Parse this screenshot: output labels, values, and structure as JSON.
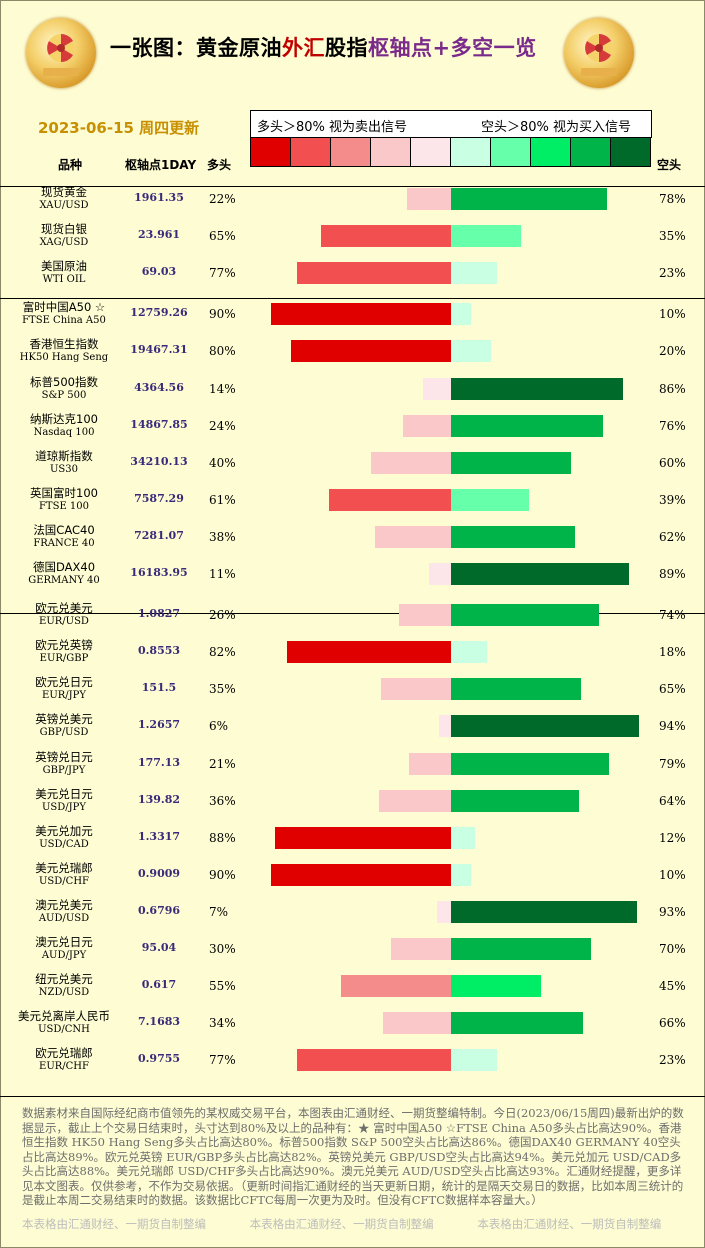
{
  "title": {
    "part1": "一张图：黄金原油",
    "part2": "外汇",
    "part3": "股指",
    "part4": "枢轴点+多空一览"
  },
  "date": "2023-06-15  周四更新",
  "legend": {
    "left": "多头＞80%  视为卖出信号",
    "right": "空头＞80%  视为买入信号"
  },
  "legend_colors": [
    "#e00000",
    "#f25050",
    "#f58c8c",
    "#fac8c8",
    "#fde6ea",
    "#c9ffe2",
    "#66ffaa",
    "#00ee66",
    "#00b44a",
    "#006a2a"
  ],
  "headers": {
    "name": "品种",
    "pivot": "枢轴点1DAY",
    "long": "多头",
    "short": "空头"
  },
  "chart_data": {
    "type": "bar",
    "series": [
      {
        "name": "多头"
      },
      {
        "name": "空头"
      }
    ],
    "rows": [
      {
        "name": "现货黄金",
        "code": "XAU/USD",
        "pivot": "1961.35",
        "long": 22,
        "short": 78,
        "long_label": "22%",
        "short_label": "78%"
      },
      {
        "name": "现货白银",
        "code": "XAG/USD",
        "pivot": "23.961",
        "long": 65,
        "short": 35,
        "long_label": "65%",
        "short_label": "35%"
      },
      {
        "name": "美国原油",
        "code": "WTI OIL",
        "pivot": "69.03",
        "long": 77,
        "short": 23,
        "long_label": "77%",
        "short_label": "23%"
      },
      {
        "name": "富时中国A50 ☆",
        "code": "FTSE China A50",
        "pivot": "12759.26",
        "long": 90,
        "short": 10,
        "long_label": "90%",
        "short_label": "10%"
      },
      {
        "name": "香港恒生指数",
        "code": "HK50 Hang Seng",
        "pivot": "19467.31",
        "long": 80,
        "short": 20,
        "long_label": "80%",
        "short_label": "20%"
      },
      {
        "name": "标普500指数",
        "code": "S&P 500",
        "pivot": "4364.56",
        "long": 14,
        "short": 86,
        "long_label": "14%",
        "short_label": "86%"
      },
      {
        "name": "纳斯达克100",
        "code": "Nasdaq 100",
        "pivot": "14867.85",
        "long": 24,
        "short": 76,
        "long_label": "24%",
        "short_label": "76%"
      },
      {
        "name": "道琼斯指数",
        "code": "US30",
        "pivot": "34210.13",
        "long": 40,
        "short": 60,
        "long_label": "40%",
        "short_label": "60%"
      },
      {
        "name": "英国富时100",
        "code": "FTSE 100",
        "pivot": "7587.29",
        "long": 61,
        "short": 39,
        "long_label": "61%",
        "short_label": "39%"
      },
      {
        "name": "法国CAC40",
        "code": "FRANCE 40",
        "pivot": "7281.07",
        "long": 38,
        "short": 62,
        "long_label": "38%",
        "short_label": "62%"
      },
      {
        "name": "德国DAX40",
        "code": "GERMANY 40",
        "pivot": "16183.95",
        "long": 11,
        "short": 89,
        "long_label": "11%",
        "short_label": "89%"
      },
      {
        "name": "欧元兑美元",
        "code": "EUR/USD",
        "pivot": "1.0827",
        "long": 26,
        "short": 74,
        "long_label": "26%",
        "short_label": "74%"
      },
      {
        "name": "欧元兑英镑",
        "code": "EUR/GBP",
        "pivot": "0.8553",
        "long": 82,
        "short": 18,
        "long_label": "82%",
        "short_label": "18%"
      },
      {
        "name": "欧元兑日元",
        "code": "EUR/JPY",
        "pivot": "151.5",
        "long": 35,
        "short": 65,
        "long_label": "35%",
        "short_label": "65%"
      },
      {
        "name": "英镑兑美元",
        "code": "GBP/USD",
        "pivot": "1.2657",
        "long": 6,
        "short": 94,
        "long_label": "6%",
        "short_label": "94%"
      },
      {
        "name": "英镑兑日元",
        "code": "GBP/JPY",
        "pivot": "177.13",
        "long": 21,
        "short": 79,
        "long_label": "21%",
        "short_label": "79%"
      },
      {
        "name": "美元兑日元",
        "code": "USD/JPY",
        "pivot": "139.82",
        "long": 36,
        "short": 64,
        "long_label": "36%",
        "short_label": "64%"
      },
      {
        "name": "美元兑加元",
        "code": "USD/CAD",
        "pivot": "1.3317",
        "long": 88,
        "short": 12,
        "long_label": "88%",
        "short_label": "12%"
      },
      {
        "name": "美元兑瑞郎",
        "code": "USD/CHF",
        "pivot": "0.9009",
        "long": 90,
        "short": 10,
        "long_label": "90%",
        "short_label": "10%"
      },
      {
        "name": "澳元兑美元",
        "code": "AUD/USD",
        "pivot": "0.6796",
        "long": 7,
        "short": 93,
        "long_label": "7%",
        "short_label": "93%"
      },
      {
        "name": "澳元兑日元",
        "code": "AUD/JPY",
        "pivot": "95.04",
        "long": 30,
        "short": 70,
        "long_label": "30%",
        "short_label": "70%"
      },
      {
        "name": "纽元兑美元",
        "code": "NZD/USD",
        "pivot": "0.617",
        "long": 55,
        "short": 45,
        "long_label": "55%",
        "short_label": "45%"
      },
      {
        "name": "美元兑离岸人民币",
        "code": "USD/CNH",
        "pivot": "7.1683",
        "long": 34,
        "short": 66,
        "long_label": "34%",
        "short_label": "66%"
      },
      {
        "name": "欧元兑瑞郎",
        "code": "EUR/CHF",
        "pivot": "0.9755",
        "long": 77,
        "short": 23,
        "long_label": "77%",
        "short_label": "23%"
      }
    ]
  },
  "footer": "数据素材来自国际经纪商市值领先的某权威交易平台，本图表由汇通财经、一期货整编特制。今日(2023/06/15周四)最新出炉的数据显示，截止上个交易日结束时，头寸达到80%及以上的品种有：★ 富时中国A50 ☆FTSE China A50多头占比高达90%。香港恒生指数 HK50 Hang Seng多头占比高达80%。标普500指数 S&P 500空头占比高达86%。德国DAX40  GERMANY 40空头占比高达89%。欧元兑英镑 EUR/GBP多头占比高达82%。英镑兑美元 GBP/USD空头占比高达94%。美元兑加元 USD/CAD多头占比高达88%。美元兑瑞郎 USD/CHF多头占比高达90%。澳元兑美元 AUD/USD空头占比高达93%。汇通财经提醒，更多详见本文图表。仅供参考，不作为交易依据。（更新时间指汇通财经的当天更新日期，统计的是隔天交易日的数据，比如本周三统计的是截止本周二交易结束时的数据。该数据比CFTC每周一次更为及时。但没有CFTC数据样本容量大。）",
  "bottom_credit": "本表格由汇通财经、一期货自制整编",
  "colors": {
    "background": "#fdfcd2",
    "title_red": "#c00000",
    "title_purple": "#7a2a8a",
    "date": "#c89000",
    "pivot": "#3a2a7a"
  }
}
